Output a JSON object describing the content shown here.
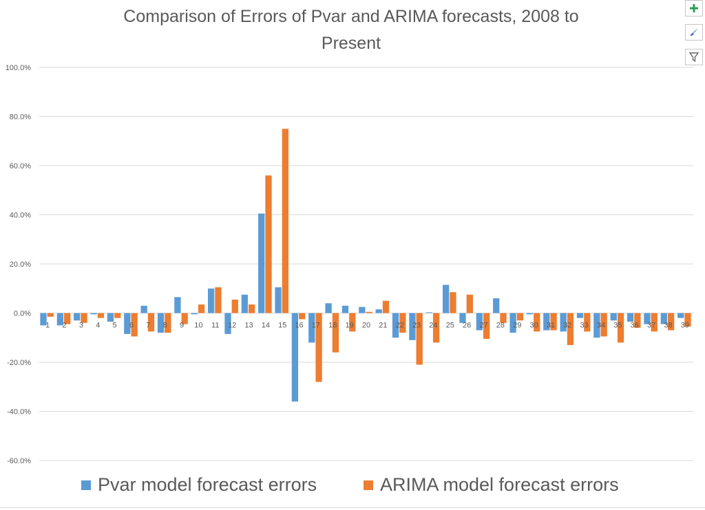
{
  "colors": {
    "pvar": "#5b9bd5",
    "arima": "#ed7d31",
    "grid": "#d9d9d9",
    "text": "#595959",
    "add_icon": "#2e9e54",
    "brush_icon": "#4472c4",
    "filter_icon": "#666666"
  },
  "toolbar": {
    "add_icon": "plus-icon",
    "style_icon": "paintbrush-icon",
    "filter_icon": "filter-icon"
  },
  "chart_data": {
    "type": "bar",
    "title_line1": "Comparison of Errors of Pvar and ARIMA forecasts, 2008 to",
    "title_line2": "Present",
    "xlabel": "",
    "ylabel": "",
    "ylim": [
      -60,
      100
    ],
    "y_ticks": [
      -60,
      -40,
      -20,
      0,
      20,
      40,
      60,
      80,
      100
    ],
    "y_tick_labels": [
      "-60.0%",
      "-40.0%",
      "-20.0%",
      "0.0%",
      "20.0%",
      "40.0%",
      "60.0%",
      "80.0%",
      "100.0%"
    ],
    "grid": true,
    "legend_position": "bottom",
    "categories": [
      "1",
      "2",
      "3",
      "4",
      "5",
      "6",
      "7",
      "8",
      "9",
      "10",
      "11",
      "12",
      "13",
      "14",
      "15",
      "16",
      "17",
      "18",
      "19",
      "20",
      "21",
      "22",
      "23",
      "24",
      "25",
      "26",
      "27",
      "28",
      "29",
      "30",
      "31",
      "32",
      "33",
      "34",
      "35",
      "36",
      "37",
      "38",
      "39"
    ],
    "series": [
      {
        "name": "Pvar model forecast errors",
        "values": [
          -5.0,
          -5.0,
          -3.0,
          -0.5,
          -3.5,
          -8.5,
          3.0,
          -8.0,
          6.5,
          -0.5,
          10.0,
          -8.5,
          7.5,
          40.5,
          10.5,
          -36.0,
          -12.0,
          4.0,
          3.0,
          2.5,
          1.5,
          -10.0,
          -11.0,
          0.3,
          11.5,
          -4.0,
          -7.0,
          6.0,
          -8.0,
          -0.5,
          -7.0,
          -7.5,
          -2.0,
          -10.0,
          -3.0,
          -3.5,
          -4.5,
          -4.5,
          -2.0
        ]
      },
      {
        "name": "ARIMA model forecast errors",
        "values": [
          -1.5,
          -4.5,
          -4.0,
          -2.0,
          -2.0,
          -9.5,
          -7.5,
          -8.0,
          -4.5,
          3.5,
          10.5,
          5.5,
          3.5,
          56.0,
          75.0,
          -2.5,
          -28.0,
          -16.0,
          -7.5,
          0.5,
          5.0,
          -8.0,
          -21.0,
          -12.0,
          8.5,
          7.5,
          -10.5,
          -4.0,
          -3.0,
          -7.5,
          -7.0,
          -13.0,
          -7.5,
          -9.5,
          -12.0,
          -6.0,
          -7.5,
          -7.0,
          -5.5
        ]
      }
    ]
  }
}
